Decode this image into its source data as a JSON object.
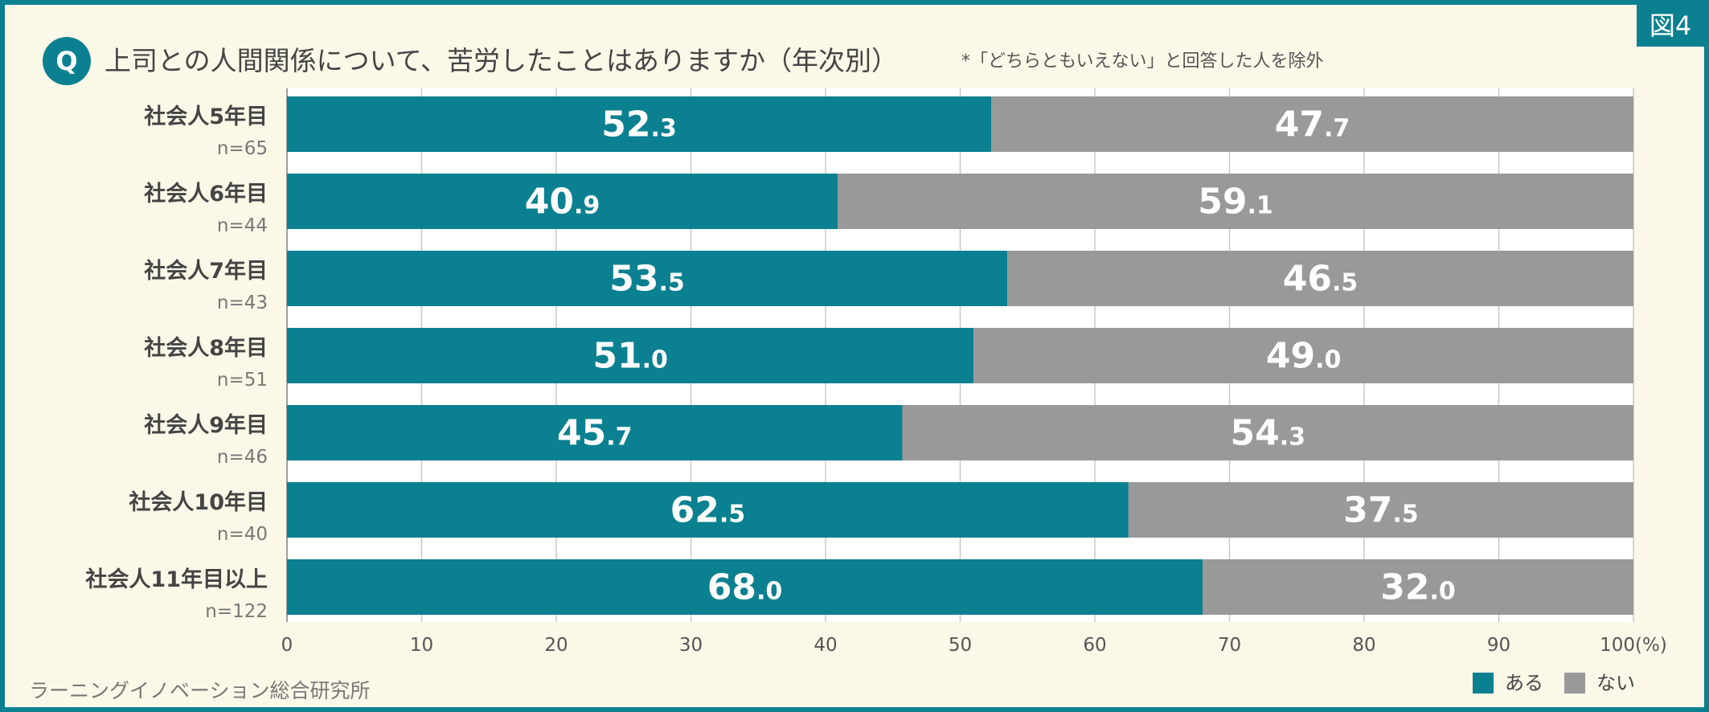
{
  "figure_label": "図4",
  "q_mark": "Q",
  "title": "上司との人間関係について、苦労したことはありますか（年次別）",
  "note": "*「どちらともいえない」と回答した人を除外",
  "source": "ラーニングイノベーション総合研究所",
  "colors": {
    "aru": "#0b8090",
    "nai": "#999999",
    "frame": "#0b8090",
    "background": "#fcf8e8"
  },
  "chart_data": {
    "type": "bar",
    "orientation": "horizontal",
    "stacked": true,
    "categories": [
      "社会人5年目",
      "社会人6年目",
      "社会人7年目",
      "社会人8年目",
      "社会人9年目",
      "社会人10年目",
      "社会人11年目以上"
    ],
    "sample_sizes": [
      "n=65",
      "n=44",
      "n=43",
      "n=51",
      "n=46",
      "n=40",
      "n=122"
    ],
    "series": [
      {
        "name": "ある",
        "values": [
          52.3,
          40.9,
          53.5,
          51.0,
          45.7,
          62.5,
          68.0
        ]
      },
      {
        "name": "ない",
        "values": [
          47.7,
          59.1,
          46.5,
          49.0,
          54.3,
          37.5,
          32.0
        ]
      }
    ],
    "xlim": [
      0,
      100
    ],
    "xticks": [
      "0",
      "10",
      "20",
      "30",
      "40",
      "50",
      "60",
      "70",
      "80",
      "90",
      "100(%)"
    ],
    "grid": true,
    "legend": "bottom-right"
  }
}
